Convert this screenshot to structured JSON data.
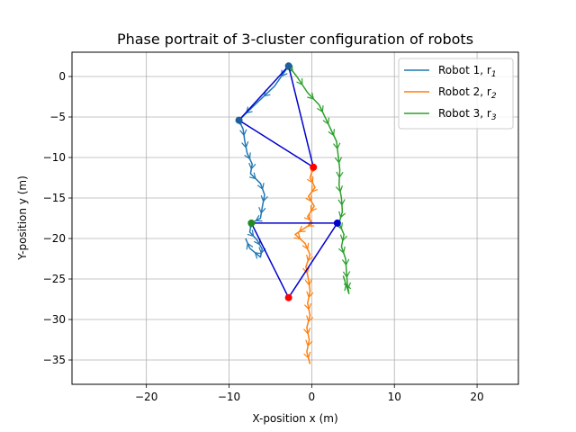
{
  "chart_data": {
    "type": "line",
    "title": "Phase portrait of 3-cluster configuration of robots",
    "xlabel": "X-position x (m)",
    "ylabel": "Y-position y (m)",
    "xlim": [
      -29,
      25
    ],
    "ylim": [
      -38,
      3
    ],
    "xticks": [
      -20,
      -10,
      0,
      10,
      20
    ],
    "xtick_labels": [
      "−20",
      "−10",
      "0",
      "10",
      "20"
    ],
    "yticks": [
      0,
      -5,
      -10,
      -15,
      -20,
      -25,
      -30,
      -35
    ],
    "ytick_labels": [
      "0",
      "−5",
      "−10",
      "−15",
      "−20",
      "−25",
      "−30",
      "−35"
    ],
    "grid": true,
    "legend_position": "top-right",
    "series": [
      {
        "name": "Robot 1, r",
        "subscript": "1",
        "color": "#1f77b4",
        "points": [
          [
            -2.8,
            1.3
          ],
          [
            -4.5,
            -1.2
          ],
          [
            -7,
            -3.6
          ],
          [
            -8.8,
            -5.4
          ],
          [
            -8.3,
            -6.5
          ],
          [
            -8.1,
            -8
          ],
          [
            -7.8,
            -9.5
          ],
          [
            -7.2,
            -10.8
          ],
          [
            -7.4,
            -12
          ],
          [
            -6.2,
            -13.2
          ],
          [
            -5.7,
            -14.6
          ],
          [
            -6,
            -16.2
          ],
          [
            -6.2,
            -17.5
          ],
          [
            -7.3,
            -18.1
          ],
          [
            -7.5,
            -19.2
          ],
          [
            -6.6,
            -20.2
          ],
          [
            -6,
            -21.3
          ],
          [
            -6.2,
            -22.3
          ],
          [
            -7.5,
            -21.2
          ],
          [
            -8,
            -20
          ]
        ]
      },
      {
        "name": "Robot 2, r",
        "subscript": "2",
        "color": "#ff7f0e",
        "points": [
          [
            0.2,
            -11.2
          ],
          [
            -0.2,
            -12.5
          ],
          [
            0.4,
            -13.7
          ],
          [
            -0.4,
            -14.8
          ],
          [
            0.3,
            -16
          ],
          [
            -0.5,
            -17.3
          ],
          [
            0.1,
            -18.1
          ],
          [
            -1,
            -18.8
          ],
          [
            -2,
            -19.5
          ],
          [
            -0.8,
            -20.6
          ],
          [
            -0.2,
            -22
          ],
          [
            -0.7,
            -23.5
          ],
          [
            -0.4,
            -25
          ],
          [
            -0.2,
            -26.5
          ],
          [
            -0.5,
            -28
          ],
          [
            -0.2,
            -29.5
          ],
          [
            -0.6,
            -31
          ],
          [
            -0.3,
            -32.5
          ],
          [
            -0.6,
            -34
          ],
          [
            -0.2,
            -35.5
          ]
        ]
      },
      {
        "name": "Robot 3, r",
        "subscript": "3",
        "color": "#2ca02c",
        "points": [
          [
            -2.8,
            1.3
          ],
          [
            -1.8,
            0
          ],
          [
            -0.5,
            -2
          ],
          [
            0.9,
            -3.5
          ],
          [
            1.7,
            -5.2
          ],
          [
            2.3,
            -6.5
          ],
          [
            3,
            -8
          ],
          [
            3.2,
            -9.8
          ],
          [
            3.4,
            -11.5
          ],
          [
            3.3,
            -13.4
          ],
          [
            3.6,
            -15
          ],
          [
            3.7,
            -16.7
          ],
          [
            3.3,
            -18.1
          ],
          [
            3.9,
            -19.5
          ],
          [
            3.6,
            -21
          ],
          [
            4.1,
            -22.5
          ],
          [
            4.2,
            -24
          ],
          [
            4.3,
            -25.5
          ],
          [
            4.5,
            -26.8
          ],
          [
            3.8,
            -24.6
          ]
        ]
      }
    ],
    "overlay_lines": {
      "color": "#0000cd",
      "segments": [
        [
          [
            -2.8,
            1.3
          ],
          [
            -8.8,
            -5.4
          ]
        ],
        [
          [
            -8.8,
            -5.4
          ],
          [
            0.2,
            -11.2
          ]
        ],
        [
          [
            0.2,
            -11.2
          ],
          [
            -2.8,
            1.3
          ]
        ],
        [
          [
            -7.3,
            -18.1
          ],
          [
            3.1,
            -18.1
          ]
        ],
        [
          [
            3.1,
            -18.1
          ],
          [
            -2.8,
            -27.3
          ]
        ],
        [
          [
            -2.8,
            -27.3
          ],
          [
            -7.3,
            -18.1
          ]
        ]
      ]
    },
    "markers": [
      {
        "x": -2.8,
        "y": 1.3,
        "color": "#1f5f9e"
      },
      {
        "x": -8.8,
        "y": -5.4,
        "color": "#1f5f9e"
      },
      {
        "x": 0.2,
        "y": -11.2,
        "color": "#ff0000"
      },
      {
        "x": -7.3,
        "y": -18.1,
        "color": "#228b22"
      },
      {
        "x": 3.1,
        "y": -18.1,
        "color": "#0000cd"
      },
      {
        "x": -2.8,
        "y": -27.3,
        "color": "#ff0000"
      }
    ]
  }
}
